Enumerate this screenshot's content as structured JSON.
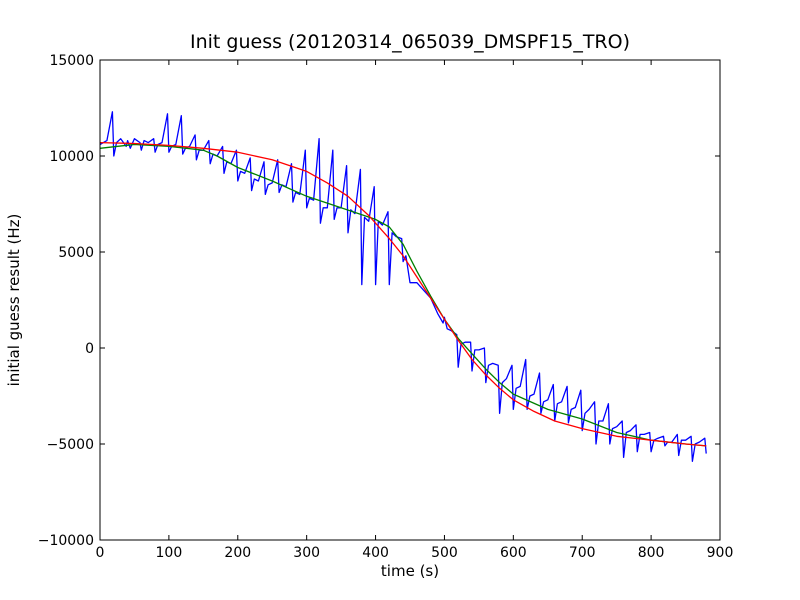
{
  "chart_data": {
    "type": "line",
    "title": "Init guess (20120314_065039_DMSPF15_TRO)",
    "xlabel": "time (s)",
    "ylabel": "initial guess result (Hz)",
    "xlim": [
      0,
      900
    ],
    "ylim": [
      -10000,
      15000
    ],
    "xticks": [
      0,
      100,
      200,
      300,
      400,
      500,
      600,
      700,
      800,
      900
    ],
    "yticks": [
      -10000,
      -5000,
      0,
      5000,
      10000,
      15000
    ],
    "xtick_labels": [
      "0",
      "100",
      "200",
      "300",
      "400",
      "500",
      "600",
      "700",
      "800",
      "900"
    ],
    "ytick_labels": [
      "−10000",
      "−5000",
      "0",
      "5000",
      "10000",
      "15000"
    ],
    "grid": false,
    "series": [
      {
        "color": "#0000ff",
        "x": [
          0,
          10,
          18,
          20,
          24,
          30,
          38,
          40,
          44,
          50,
          58,
          60,
          64,
          70,
          78,
          80,
          84,
          90,
          98,
          100,
          104,
          110,
          118,
          120,
          124,
          130,
          138,
          140,
          144,
          150,
          158,
          160,
          164,
          170,
          178,
          180,
          184,
          190,
          198,
          200,
          204,
          210,
          218,
          220,
          224,
          230,
          238,
          240,
          244,
          250,
          258,
          260,
          264,
          270,
          278,
          280,
          284,
          290,
          298,
          300,
          304,
          310,
          318,
          320,
          324,
          330,
          338,
          340,
          344,
          350,
          358,
          360,
          364,
          370,
          378,
          380,
          384,
          390,
          398,
          400,
          404,
          410,
          418,
          420,
          424,
          430,
          438,
          440,
          444,
          450,
          460,
          470,
          480,
          490,
          498,
          500,
          504,
          510,
          518,
          520,
          524,
          530,
          538,
          540,
          544,
          550,
          558,
          560,
          564,
          570,
          578,
          580,
          584,
          590,
          598,
          600,
          604,
          610,
          618,
          620,
          624,
          630,
          638,
          640,
          644,
          650,
          658,
          660,
          664,
          670,
          678,
          680,
          684,
          690,
          698,
          700,
          704,
          710,
          718,
          720,
          724,
          730,
          738,
          740,
          744,
          750,
          758,
          760,
          764,
          770,
          778,
          780,
          784,
          790,
          798,
          800,
          804,
          810,
          818,
          820,
          824,
          830,
          838,
          840,
          844,
          850,
          858,
          860,
          864,
          870,
          878,
          880
        ],
        "y": [
          10600,
          10800,
          12300,
          10000,
          10700,
          10900,
          10500,
          10800,
          10400,
          10900,
          10700,
          10300,
          10800,
          10700,
          10900,
          10200,
          10600,
          10700,
          12200,
          10200,
          10500,
          10600,
          12100,
          10100,
          10400,
          10500,
          11100,
          9800,
          10300,
          10300,
          10800,
          9600,
          10100,
          10000,
          10500,
          9100,
          9700,
          9600,
          10300,
          8700,
          9200,
          9100,
          9900,
          8200,
          8800,
          8700,
          9700,
          8000,
          8500,
          8600,
          9800,
          8100,
          8500,
          8400,
          9600,
          7600,
          8100,
          8000,
          10300,
          7300,
          7800,
          7700,
          10900,
          6500,
          7300,
          7300,
          10300,
          6700,
          7300,
          7300,
          9500,
          6000,
          7200,
          7000,
          9300,
          3300,
          6800,
          6600,
          8400,
          3300,
          6600,
          6400,
          7100,
          3300,
          6000,
          5800,
          5700,
          4500,
          4800,
          3400,
          3400,
          3000,
          2600,
          1800,
          1300,
          1600,
          1000,
          900,
          700,
          -1000,
          200,
          300,
          300,
          -1200,
          -100,
          -100,
          0,
          -1800,
          -900,
          -800,
          -900,
          -3400,
          -1800,
          -1600,
          -900,
          -3200,
          -2100,
          -2000,
          -600,
          -3200,
          -2500,
          -2400,
          -1300,
          -3400,
          -2800,
          -2700,
          -1900,
          -3800,
          -2900,
          -2800,
          -2000,
          -3900,
          -3200,
          -3100,
          -2200,
          -4300,
          -3400,
          -3200,
          -2800,
          -5000,
          -3800,
          -3800,
          -2900,
          -5000,
          -4200,
          -4100,
          -3800,
          -5700,
          -4400,
          -4300,
          -4000,
          -5400,
          -4500,
          -4500,
          -4400,
          -5400,
          -4800,
          -4700,
          -4600,
          -5100,
          -4900,
          -4900,
          -4500,
          -5600,
          -4800,
          -4800,
          -4600,
          -5900,
          -5000,
          -4900,
          -4700,
          -5500
        ]
      },
      {
        "color": "#008000",
        "x": [
          0,
          50,
          100,
          150,
          170,
          200,
          250,
          300,
          350,
          400,
          420,
          440,
          460,
          480,
          500,
          520,
          540,
          560,
          580,
          600,
          650,
          700,
          750,
          800,
          850,
          880
        ],
        "y": [
          10400,
          10600,
          10500,
          10300,
          10000,
          9400,
          8700,
          7900,
          7300,
          6700,
          6300,
          5400,
          4000,
          2700,
          1500,
          500,
          -300,
          -1100,
          -1800,
          -2400,
          -3200,
          -3700,
          -4400,
          -4800,
          -5000,
          -5100
        ]
      },
      {
        "color": "#ff0000",
        "x": [
          0,
          50,
          100,
          150,
          200,
          250,
          300,
          330,
          360,
          390,
          420,
          440,
          460,
          480,
          500,
          520,
          540,
          560,
          580,
          600,
          630,
          660,
          700,
          750,
          800,
          850,
          880
        ],
        "y": [
          10700,
          10650,
          10550,
          10400,
          10200,
          9800,
          9200,
          8600,
          7900,
          6900,
          5700,
          4800,
          3700,
          2600,
          1500,
          400,
          -600,
          -1400,
          -2100,
          -2700,
          -3300,
          -3800,
          -4200,
          -4600,
          -4800,
          -5000,
          -5100
        ]
      }
    ]
  }
}
